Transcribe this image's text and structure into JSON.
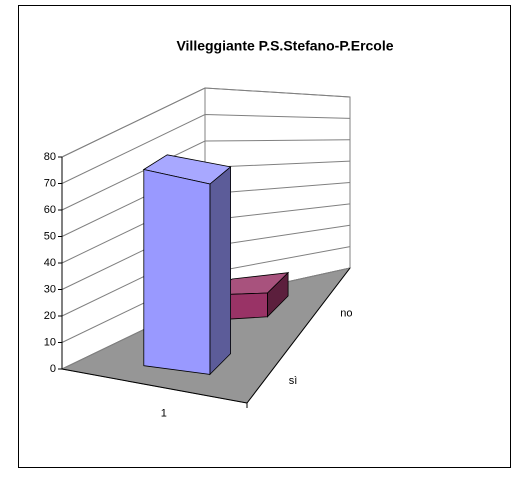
{
  "chart_data": {
    "type": "bar3d",
    "title": "Villeggiante P.S.Stefano-P.Ercole",
    "categories": [
      "1"
    ],
    "series": [
      {
        "name": "sì",
        "color": "#9999ff",
        "values": [
          76
        ]
      },
      {
        "name": "no",
        "color": "#993366",
        "values": [
          10
        ]
      }
    ],
    "ylim": [
      0,
      80
    ],
    "yticks": [
      0,
      10,
      20,
      30,
      40,
      50,
      60,
      70,
      80
    ],
    "grid": true
  }
}
